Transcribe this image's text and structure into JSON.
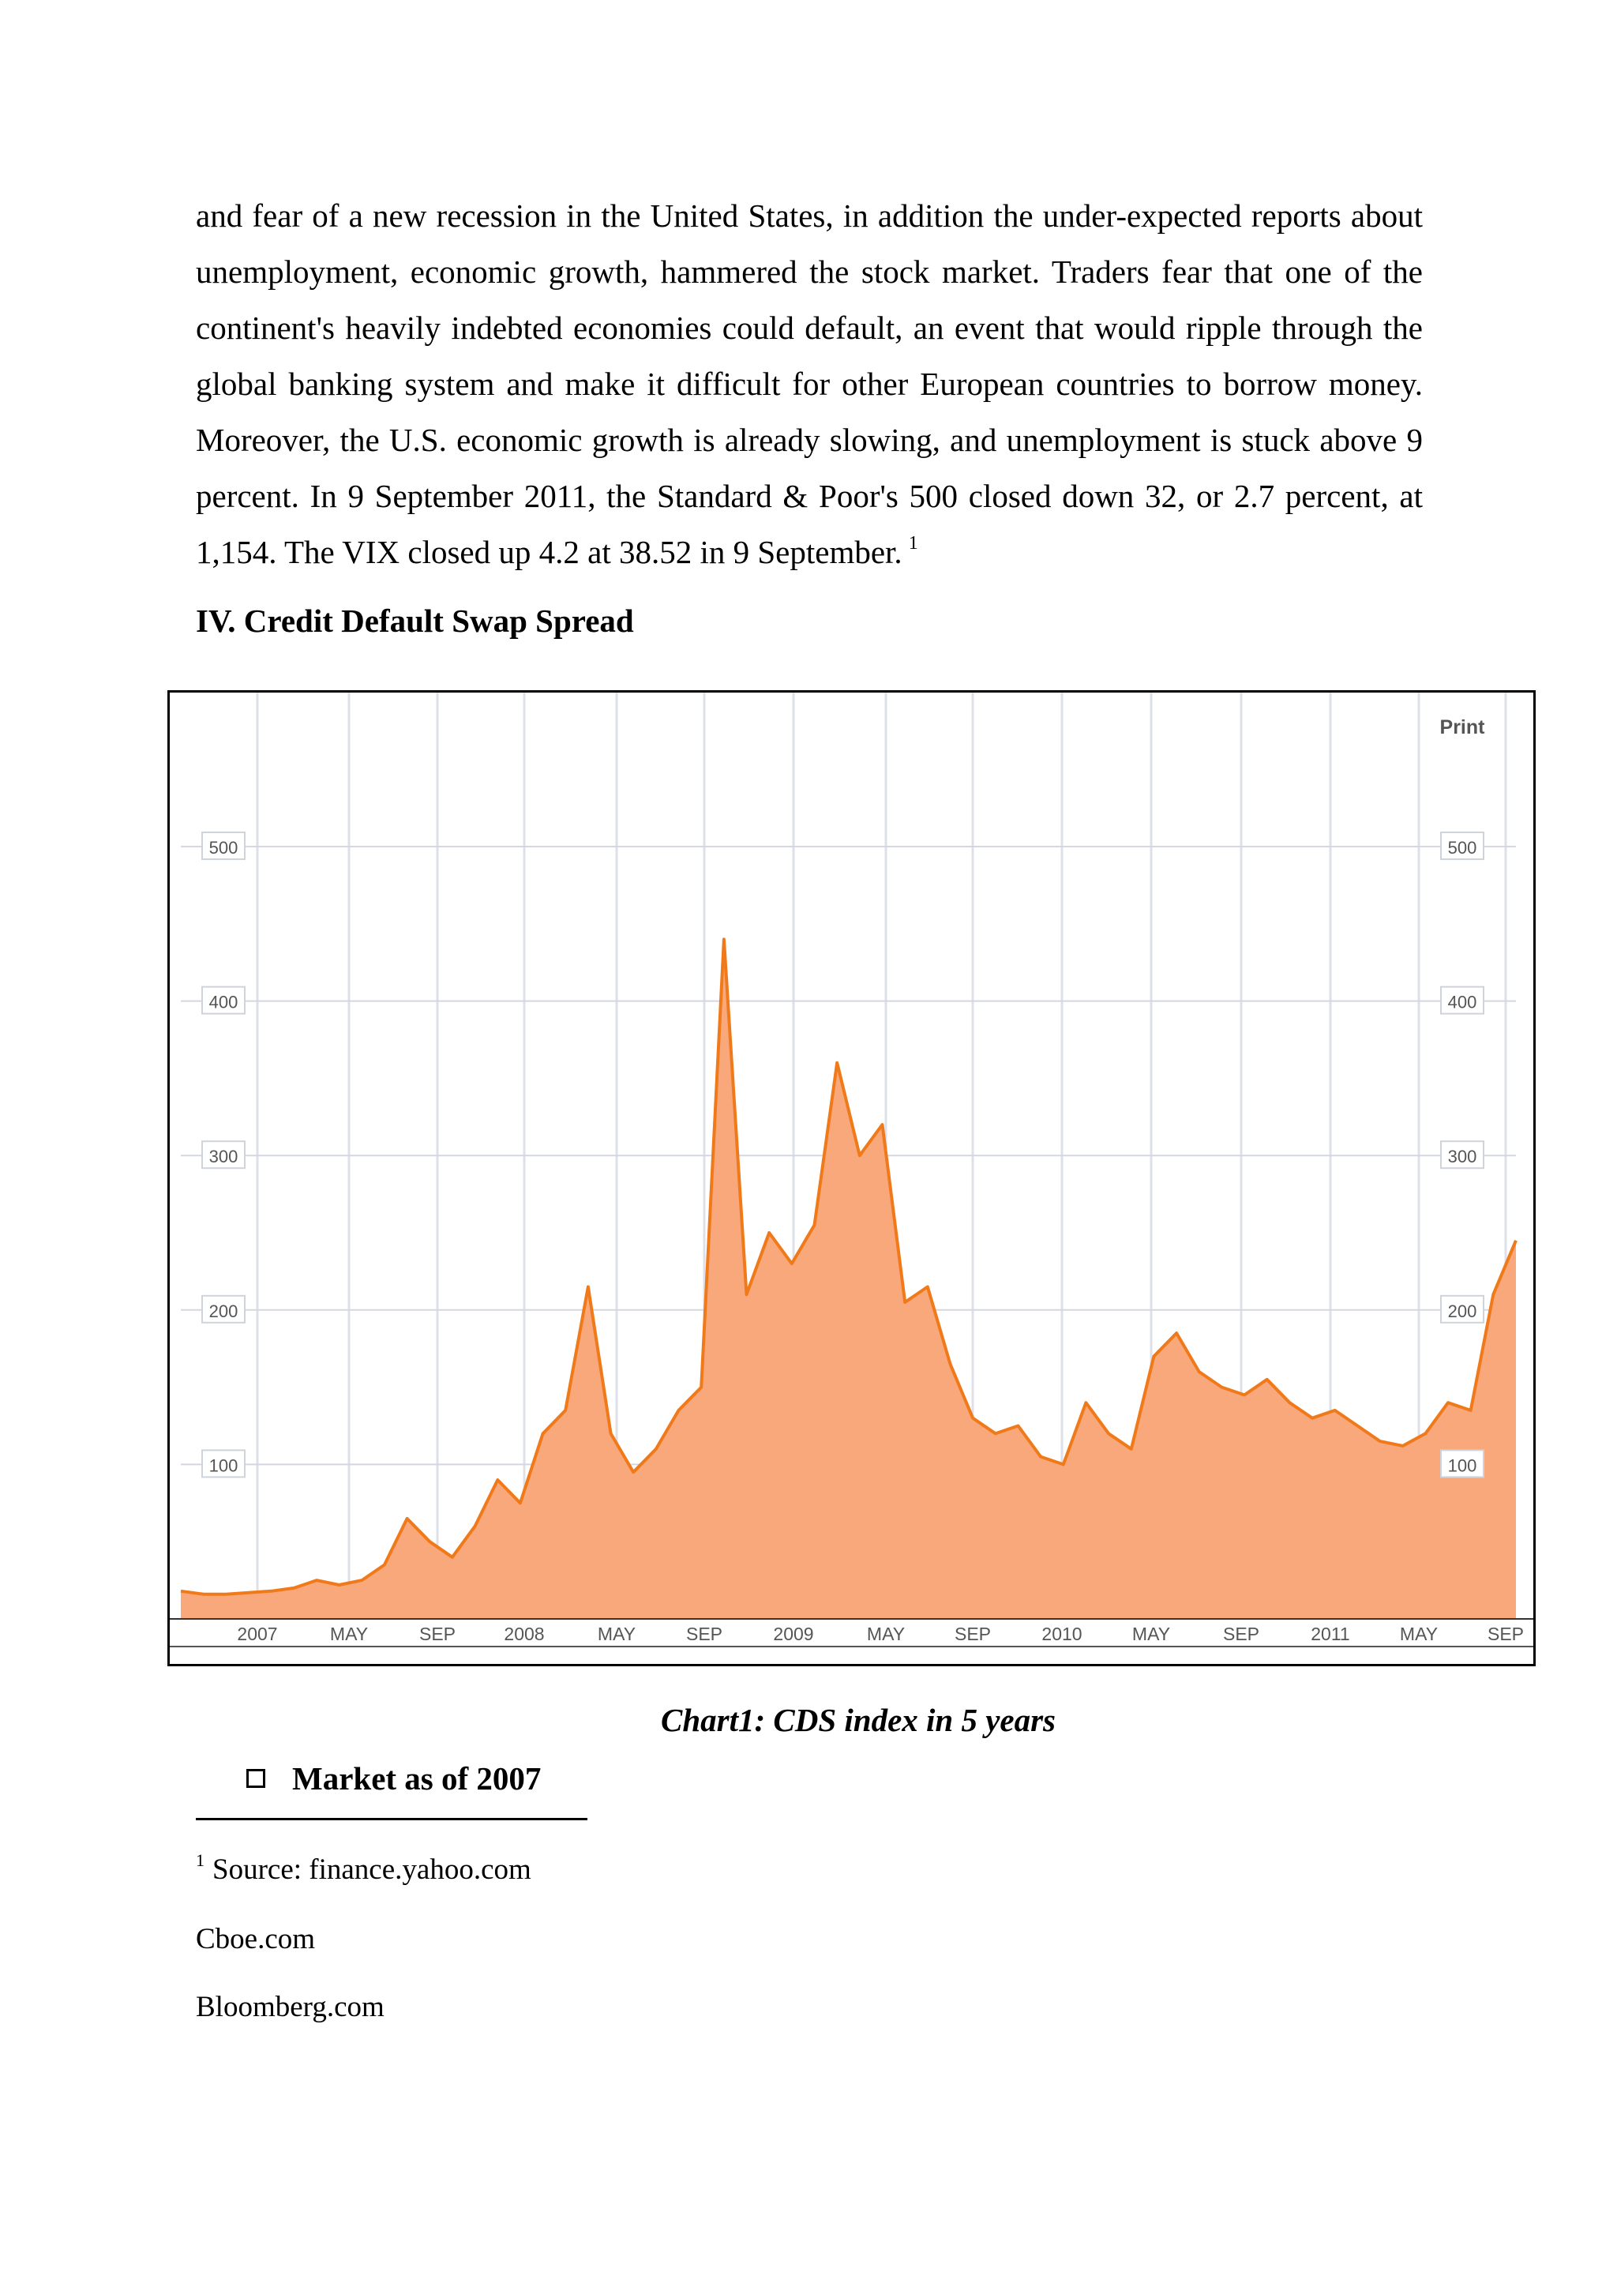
{
  "paragraph": {
    "lines": [
      "and fear of a new recession in the United States, in addition the under-expected reports about",
      "unemployment, economic growth, hammered the stock market. Traders fear that one of the",
      "continent's heavily indebted economies could default, an event that would ripple through the",
      "global banking system and make it difficult for other European countries to borrow money.",
      "Moreover, the U.S. economic growth is already slowing, and unemployment is stuck above 9",
      "percent. In 9 September 2011, the Standard & Poor's 500 closed down 32, or 2.7 percent, at",
      "1,154. The VIX closed up 4.2 at 38.52 in 9 September."
    ],
    "footnote_ref": "1"
  },
  "heading": "IV. Credit Default Swap Spread",
  "chart": {
    "print_label": "Print",
    "fill_color": "#f9a87c",
    "line_color": "#f07a1a"
  },
  "chart_data": {
    "type": "area",
    "title": "",
    "xlabel": "",
    "ylabel": "",
    "ylim": [
      0,
      590
    ],
    "yticks": [
      "100",
      "200",
      "300",
      "400",
      "500"
    ],
    "xticks": [
      "2007",
      "MAY",
      "SEP",
      "2008",
      "MAY",
      "SEP",
      "2009",
      "MAY",
      "SEP",
      "2010",
      "MAY",
      "SEP",
      "2011",
      "MAY",
      "SEP"
    ],
    "grid": true,
    "x": [
      "2006-10",
      "2006-11",
      "2006-12",
      "2007-01",
      "2007-02",
      "2007-03",
      "2007-04",
      "2007-05",
      "2007-06",
      "2007-07",
      "2007-08",
      "2007-09",
      "2007-10",
      "2007-11",
      "2007-12",
      "2008-01",
      "2008-02",
      "2008-03",
      "2008-04",
      "2008-05",
      "2008-06",
      "2008-07",
      "2008-08",
      "2008-09",
      "2008-10",
      "2008-11",
      "2008-12",
      "2009-01",
      "2009-02",
      "2009-03",
      "2009-04",
      "2009-05",
      "2009-06",
      "2009-07",
      "2009-08",
      "2009-09",
      "2009-10",
      "2009-11",
      "2009-12",
      "2010-01",
      "2010-02",
      "2010-03",
      "2010-04",
      "2010-05",
      "2010-06",
      "2010-07",
      "2010-08",
      "2010-09",
      "2010-10",
      "2010-11",
      "2010-12",
      "2011-01",
      "2011-02",
      "2011-03",
      "2011-04",
      "2011-05",
      "2011-06",
      "2011-07",
      "2011-08",
      "2011-09"
    ],
    "values": [
      18,
      16,
      16,
      17,
      18,
      20,
      25,
      22,
      25,
      35,
      65,
      50,
      40,
      60,
      90,
      75,
      120,
      135,
      215,
      120,
      95,
      110,
      135,
      150,
      440,
      210,
      250,
      230,
      255,
      360,
      300,
      320,
      205,
      215,
      165,
      130,
      120,
      125,
      105,
      100,
      140,
      120,
      110,
      170,
      185,
      160,
      150,
      145,
      155,
      140,
      130,
      135,
      125,
      115,
      112,
      120,
      140,
      135,
      210,
      245
    ],
    "series": [
      {
        "name": "",
        "values": [
          18,
          16,
          16,
          17,
          18,
          20,
          25,
          22,
          25,
          35,
          65,
          50,
          40,
          60,
          90,
          75,
          120,
          135,
          215,
          120,
          95,
          110,
          135,
          150,
          440,
          210,
          250,
          230,
          255,
          360,
          300,
          320,
          205,
          215,
          165,
          130,
          120,
          125,
          105,
          100,
          140,
          120,
          110,
          170,
          185,
          160,
          150,
          145,
          155,
          140,
          130,
          135,
          125,
          115,
          112,
          120,
          140,
          135,
          210,
          245
        ]
      }
    ]
  },
  "caption": "Chart1: CDS index in 5 years",
  "bullet": "Market as of 2007",
  "footnotes": {
    "ref": "1",
    "line1": "Source: finance.yahoo.com",
    "line2": "Cboe.com",
    "line3": "Bloomberg.com"
  }
}
